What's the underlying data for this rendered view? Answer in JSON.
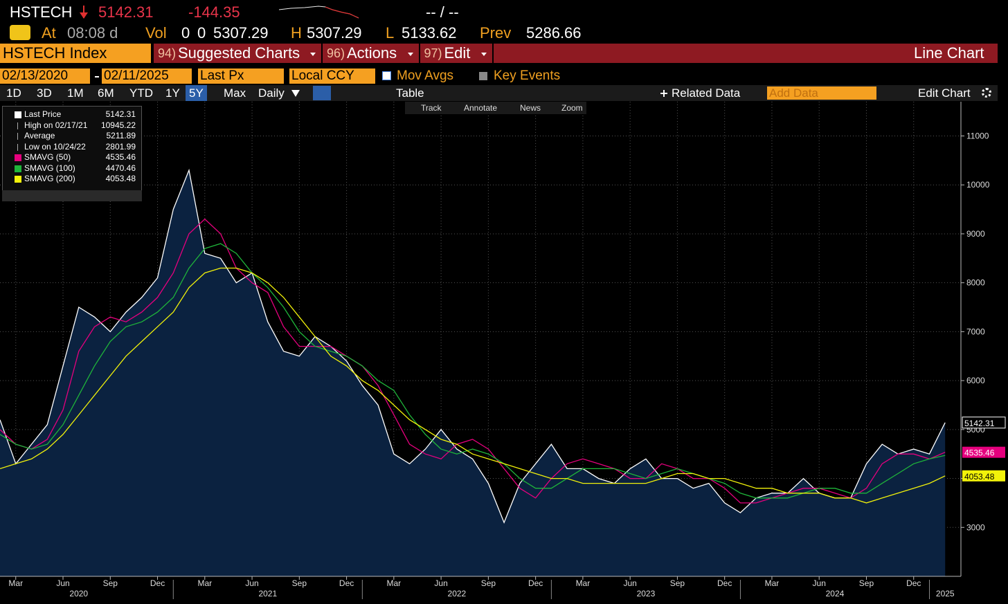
{
  "header": {
    "symbol": "HSTECH",
    "change": "-144.35",
    "bid_ask": "-- / --",
    "at_label": "At",
    "time": "08:08 d",
    "vol_label": "Vol",
    "vol": "0",
    "vol2": "0",
    "open": "5307.29",
    "h_label": "H",
    "high": "5307.29",
    "l_label": "L",
    "low": "5133.62",
    "prev_label": "Prev",
    "prev": "5286.66"
  },
  "toolbar": {
    "security": "HSTECH Index",
    "items": [
      {
        "num": "94)",
        "label": "Suggested Charts"
      },
      {
        "num": "96)",
        "label": "Actions"
      },
      {
        "num": "97)",
        "label": "Edit"
      }
    ],
    "chart_type": "Line Chart"
  },
  "controls": {
    "start_date": "02/13/2020",
    "end_date": "02/11/2025",
    "field": "Last Px",
    "currency": "Local CCY",
    "mov_avgs": "Mov Avgs",
    "key_events": "Key Events",
    "ranges": [
      "1D",
      "3D",
      "1M",
      "6M",
      "YTD",
      "1Y",
      "5Y",
      "Max"
    ],
    "active_range": "5Y",
    "period": "Daily",
    "table": "Table",
    "related": "Related Data",
    "add_data": "Add Data",
    "edit_chart": "Edit Chart"
  },
  "tools": [
    "Track",
    "Annotate",
    "News",
    "Zoom"
  ],
  "legend_stats": [
    {
      "label": "High on 02/17/21",
      "value": "10945.22"
    },
    {
      "label": "Average",
      "value": "5211.89"
    },
    {
      "label": "Low on 10/24/22",
      "value": "2801.99"
    }
  ],
  "chart_data": {
    "type": "line",
    "x": [
      "2020-02",
      "2020-03",
      "2020-04",
      "2020-05",
      "2020-06",
      "2020-07",
      "2020-08",
      "2020-09",
      "2020-10",
      "2020-11",
      "2020-12",
      "2021-01",
      "2021-02",
      "2021-03",
      "2021-04",
      "2021-05",
      "2021-06",
      "2021-07",
      "2021-08",
      "2021-09",
      "2021-10",
      "2021-11",
      "2021-12",
      "2022-01",
      "2022-02",
      "2022-03",
      "2022-04",
      "2022-05",
      "2022-06",
      "2022-07",
      "2022-08",
      "2022-09",
      "2022-10",
      "2022-11",
      "2022-12",
      "2023-01",
      "2023-02",
      "2023-03",
      "2023-04",
      "2023-05",
      "2023-06",
      "2023-07",
      "2023-08",
      "2023-09",
      "2023-10",
      "2023-11",
      "2023-12",
      "2024-01",
      "2024-02",
      "2024-03",
      "2024-04",
      "2024-05",
      "2024-06",
      "2024-07",
      "2024-08",
      "2024-09",
      "2024-10",
      "2024-11",
      "2024-12",
      "2025-01",
      "2025-02"
    ],
    "series": [
      {
        "name": "Last Price",
        "color": "#ffffff",
        "area": true,
        "last_label": true,
        "values": [
          5200,
          4300,
          4700,
          5100,
          6300,
          7500,
          7300,
          7000,
          7400,
          7700,
          8100,
          9500,
          10300,
          8600,
          8500,
          8000,
          8200,
          7200,
          6600,
          6500,
          6900,
          6700,
          6400,
          5900,
          5500,
          4500,
          4300,
          4600,
          5000,
          4600,
          4400,
          3900,
          3100,
          3900,
          4300,
          4700,
          4200,
          4200,
          4000,
          3900,
          4200,
          4400,
          4000,
          4000,
          3800,
          3900,
          3500,
          3300,
          3600,
          3700,
          3700,
          4000,
          3700,
          3600,
          3600,
          4300,
          4700,
          4500,
          4600,
          4500,
          5142.31
        ]
      },
      {
        "name": "SMAVG (50)",
        "color": "#e6007e",
        "last_label": true,
        "values": [
          5000,
          4700,
          4600,
          4800,
          5400,
          6600,
          7100,
          7300,
          7200,
          7400,
          7700,
          8200,
          9000,
          9300,
          9000,
          8300,
          8000,
          7800,
          7100,
          6700,
          6700,
          6700,
          6500,
          6300,
          5900,
          5300,
          4700,
          4500,
          4400,
          4700,
          4800,
          4600,
          4200,
          3800,
          3600,
          4000,
          4300,
          4400,
          4300,
          4200,
          4000,
          4000,
          4300,
          4200,
          4000,
          4000,
          3800,
          3500,
          3500,
          3600,
          3700,
          3800,
          3800,
          3700,
          3600,
          3800,
          4300,
          4500,
          4500,
          4400,
          4535.46
        ]
      },
      {
        "name": "SMAVG (100)",
        "color": "#1fb53a",
        "last_label": false,
        "values": [
          4900,
          4700,
          4600,
          4700,
          5100,
          5700,
          6300,
          6800,
          7100,
          7200,
          7400,
          7700,
          8300,
          8700,
          8800,
          8600,
          8200,
          7900,
          7500,
          7000,
          6700,
          6600,
          6500,
          6300,
          6000,
          5800,
          5300,
          4900,
          4600,
          4500,
          4600,
          4500,
          4300,
          4000,
          3800,
          3800,
          4000,
          4200,
          4200,
          4200,
          4100,
          4000,
          4100,
          4200,
          4100,
          4000,
          3900,
          3700,
          3600,
          3600,
          3600,
          3700,
          3800,
          3800,
          3700,
          3700,
          3900,
          4100,
          4300,
          4400,
          4470.46
        ]
      },
      {
        "name": "SMAVG (200)",
        "color": "#f2f20a",
        "last_label": true,
        "values": [
          4200,
          4300,
          4400,
          4600,
          4900,
          5300,
          5700,
          6100,
          6500,
          6800,
          7100,
          7400,
          7900,
          8200,
          8300,
          8300,
          8200,
          8000,
          7700,
          7300,
          6900,
          6500,
          6300,
          6000,
          5800,
          5500,
          5200,
          5000,
          4800,
          4700,
          4500,
          4400,
          4300,
          4200,
          4100,
          4000,
          4000,
          3900,
          3900,
          3900,
          3900,
          3900,
          4000,
          4100,
          4100,
          4000,
          4000,
          3900,
          3800,
          3800,
          3700,
          3700,
          3700,
          3600,
          3600,
          3500,
          3600,
          3700,
          3800,
          3900,
          4053.48
        ]
      }
    ],
    "xlim": [
      "2020-02",
      "2025-03"
    ],
    "xticks": [
      {
        "value": "2020-03",
        "label": "Mar"
      },
      {
        "value": "2020-06",
        "label": "Jun"
      },
      {
        "value": "2020-09",
        "label": "Sep"
      },
      {
        "value": "2020-12",
        "label": "Dec"
      },
      {
        "value": "2021-03",
        "label": "Mar"
      },
      {
        "value": "2021-06",
        "label": "Jun"
      },
      {
        "value": "2021-09",
        "label": "Sep"
      },
      {
        "value": "2021-12",
        "label": "Dec"
      },
      {
        "value": "2022-03",
        "label": "Mar"
      },
      {
        "value": "2022-06",
        "label": "Jun"
      },
      {
        "value": "2022-09",
        "label": "Sep"
      },
      {
        "value": "2022-12",
        "label": "Dec"
      },
      {
        "value": "2023-03",
        "label": "Mar"
      },
      {
        "value": "2023-06",
        "label": "Jun"
      },
      {
        "value": "2023-09",
        "label": "Sep"
      },
      {
        "value": "2023-12",
        "label": "Dec"
      },
      {
        "value": "2024-03",
        "label": "Mar"
      },
      {
        "value": "2024-06",
        "label": "Jun"
      },
      {
        "value": "2024-09",
        "label": "Sep"
      },
      {
        "value": "2024-12",
        "label": "Dec"
      }
    ],
    "year_labels": [
      {
        "value": "2020-07",
        "label": "2020"
      },
      {
        "value": "2021-07",
        "label": "2021"
      },
      {
        "value": "2022-07",
        "label": "2022"
      },
      {
        "value": "2023-07",
        "label": "2023"
      },
      {
        "value": "2024-07",
        "label": "2024"
      },
      {
        "value": "2025-02",
        "label": "2025"
      }
    ],
    "ylim": [
      2000,
      11700
    ],
    "yticks": [
      3000,
      4000,
      5000,
      6000,
      7000,
      8000,
      9000,
      10000,
      11000
    ],
    "grid": true
  }
}
